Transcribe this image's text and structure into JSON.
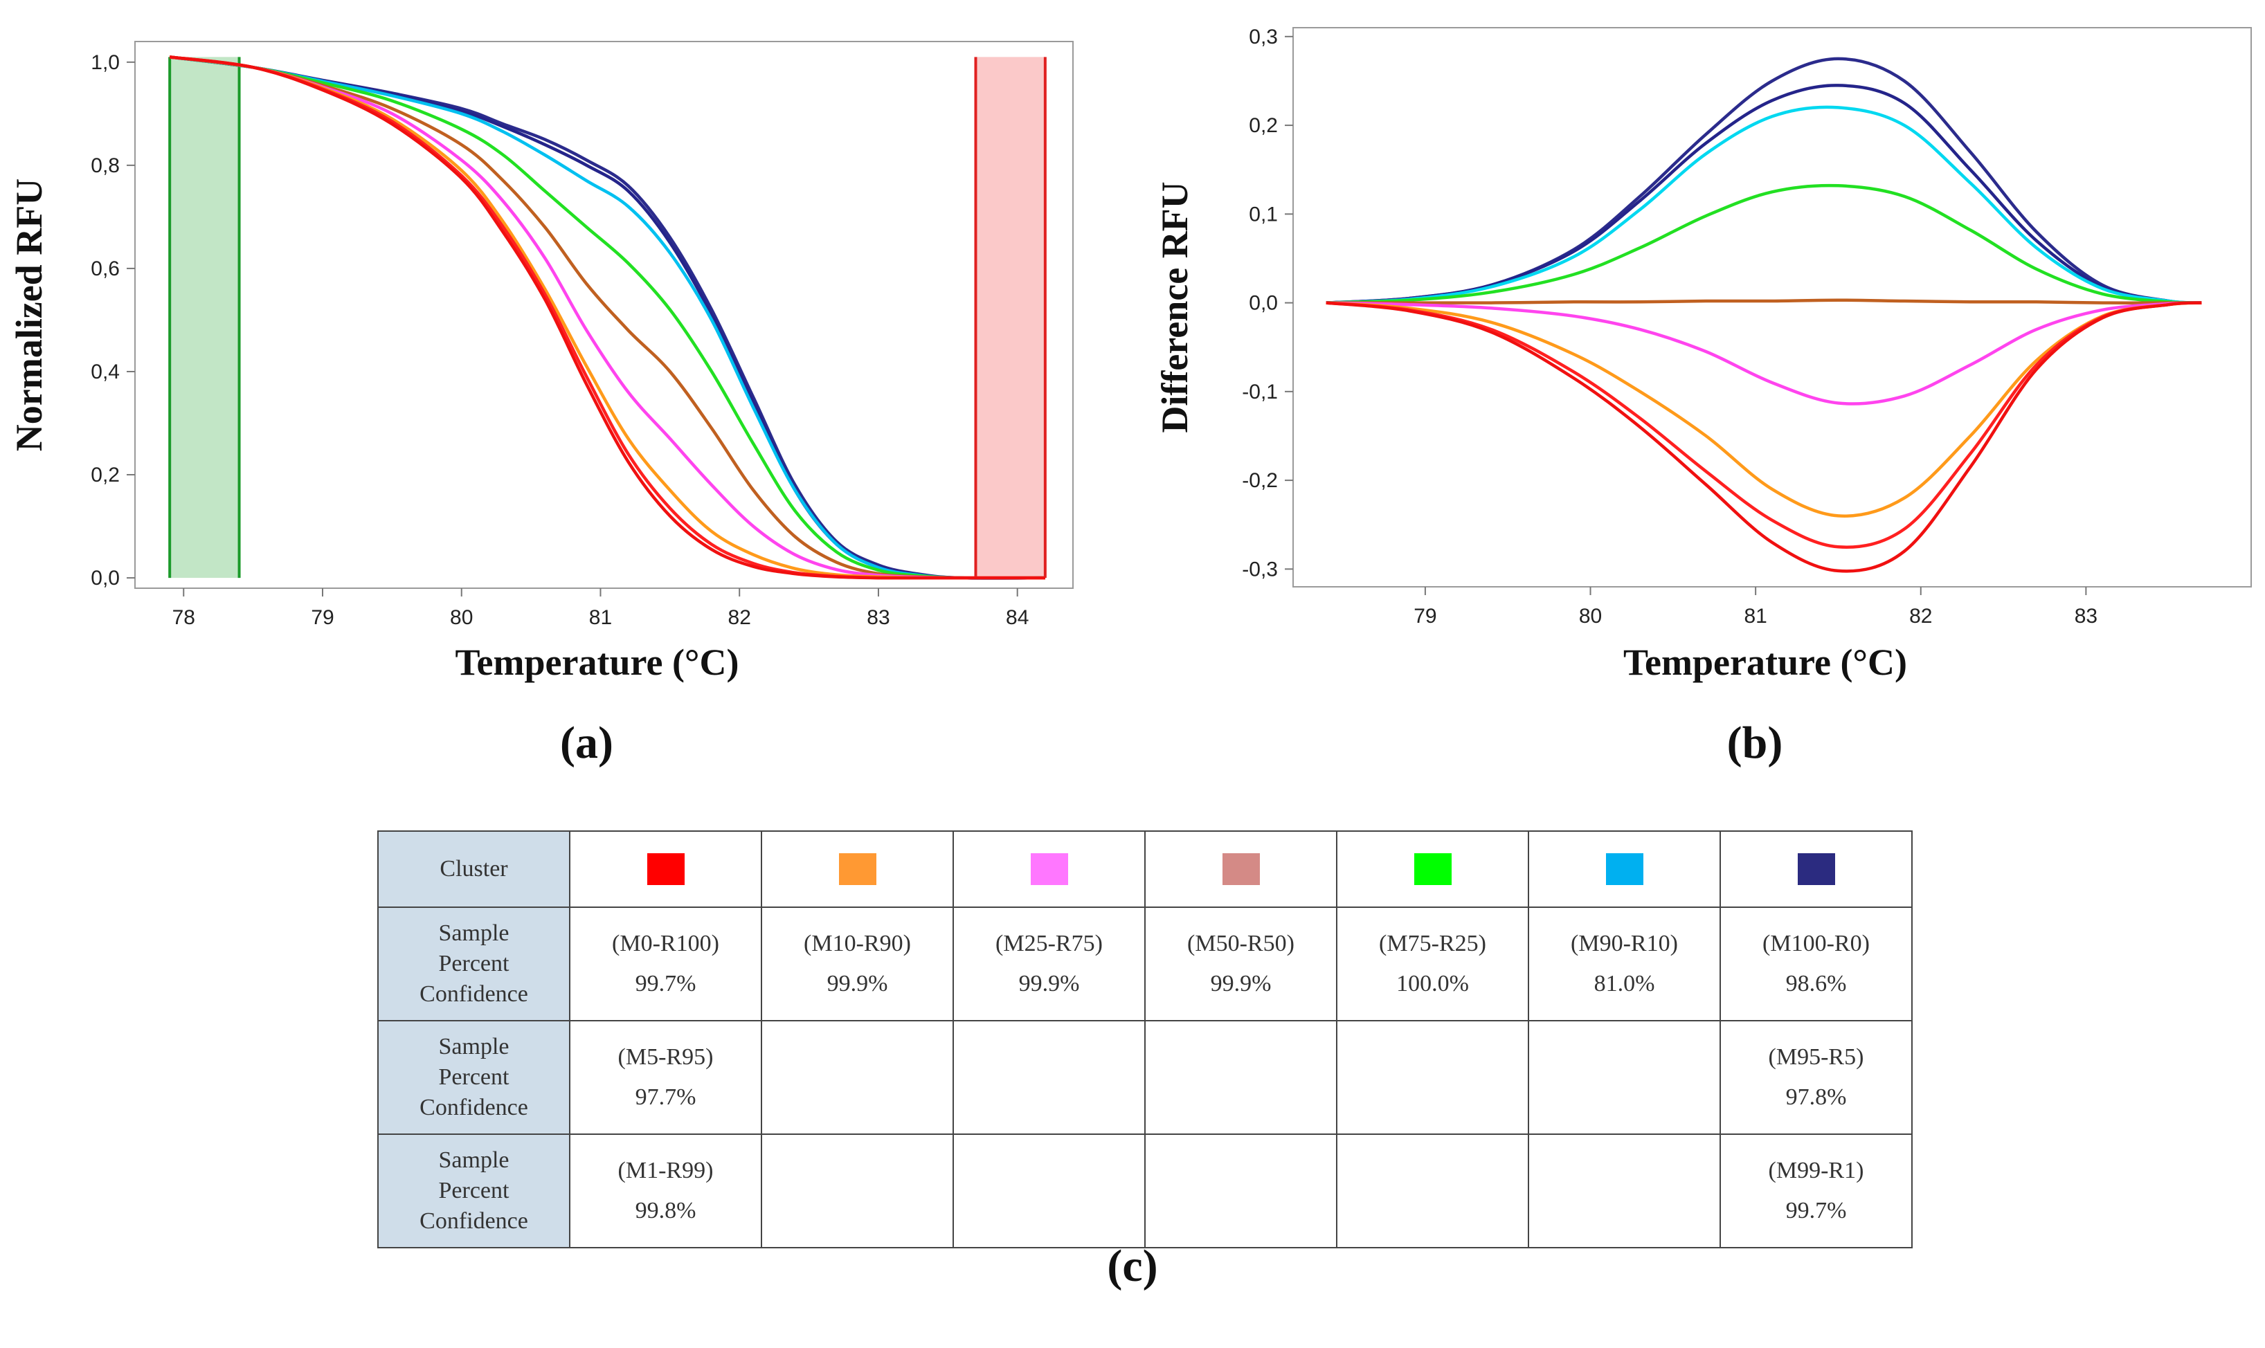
{
  "chart_data": [
    {
      "type": "line",
      "panel": "(a)",
      "ylabel": "Normalized RFU",
      "xlabel": "Temperature (°C)",
      "xlim": [
        77.65,
        84.4
      ],
      "ylim": [
        -0.02,
        1.04
      ],
      "xticks": [
        78,
        79,
        80,
        81,
        82,
        83,
        84
      ],
      "yticks": [
        0.0,
        0.2,
        0.4,
        0.6,
        0.8,
        1.0
      ],
      "ytick_labels": [
        "0,0",
        "0,2",
        "0,4",
        "0,6",
        "0,8",
        "1,0"
      ],
      "regions": [
        {
          "name": "pre-melt",
          "x": [
            77.9,
            78.4
          ],
          "y": [
            0.0,
            1.01
          ],
          "color": "#c2e6c6",
          "edge": "#1b9a2a"
        },
        {
          "name": "post-melt",
          "x": [
            83.7,
            84.2
          ],
          "y": [
            0.0,
            1.01
          ],
          "color": "#fbc9c9",
          "edge": "#e02020"
        }
      ],
      "x": [
        77.9,
        78.5,
        79.0,
        79.5,
        80.0,
        80.3,
        80.6,
        80.9,
        81.2,
        81.5,
        81.8,
        82.1,
        82.4,
        82.7,
        83.0,
        83.3,
        83.6,
        84.2
      ],
      "series": [
        {
          "name": "M100-R0 a",
          "color": "#2b2b8c",
          "values": [
            1.01,
            0.99,
            0.965,
            0.94,
            0.91,
            0.88,
            0.85,
            0.81,
            0.76,
            0.66,
            0.52,
            0.35,
            0.18,
            0.07,
            0.025,
            0.007,
            0.0,
            0.0
          ]
        },
        {
          "name": "M100-R0 b",
          "color": "#24248a",
          "values": [
            1.01,
            0.99,
            0.964,
            0.938,
            0.905,
            0.875,
            0.84,
            0.8,
            0.75,
            0.65,
            0.51,
            0.34,
            0.17,
            0.065,
            0.022,
            0.006,
            0.0,
            0.0
          ]
        },
        {
          "name": "M90-R10",
          "color": "#00c0f0",
          "values": [
            1.01,
            0.99,
            0.963,
            0.935,
            0.9,
            0.865,
            0.82,
            0.77,
            0.72,
            0.63,
            0.5,
            0.33,
            0.17,
            0.065,
            0.02,
            0.005,
            0.0,
            0.0
          ]
        },
        {
          "name": "M75-R25",
          "color": "#22e022",
          "values": [
            1.01,
            0.99,
            0.96,
            0.925,
            0.87,
            0.82,
            0.75,
            0.68,
            0.61,
            0.52,
            0.4,
            0.26,
            0.13,
            0.05,
            0.015,
            0.004,
            0.0,
            0.0
          ]
        },
        {
          "name": "M50-R50",
          "color": "#c06020",
          "values": [
            1.01,
            0.99,
            0.955,
            0.91,
            0.84,
            0.77,
            0.68,
            0.57,
            0.48,
            0.4,
            0.29,
            0.17,
            0.08,
            0.03,
            0.008,
            0.002,
            0.0,
            0.0
          ]
        },
        {
          "name": "M25-R75",
          "color": "#ff44ee",
          "values": [
            1.01,
            0.99,
            0.952,
            0.9,
            0.81,
            0.73,
            0.62,
            0.48,
            0.36,
            0.27,
            0.18,
            0.1,
            0.045,
            0.016,
            0.005,
            0.001,
            0.0,
            0.0
          ]
        },
        {
          "name": "M10-R90",
          "color": "#ff9a1a",
          "values": [
            1.01,
            0.99,
            0.95,
            0.89,
            0.79,
            0.69,
            0.56,
            0.41,
            0.27,
            0.17,
            0.09,
            0.045,
            0.018,
            0.006,
            0.002,
            0.0,
            0.0,
            0.0
          ]
        },
        {
          "name": "M0-R100 a",
          "color": "#ff2020",
          "values": [
            1.01,
            0.99,
            0.948,
            0.885,
            0.78,
            0.68,
            0.55,
            0.39,
            0.24,
            0.135,
            0.065,
            0.028,
            0.01,
            0.003,
            0.0,
            0.0,
            0.0,
            0.0
          ]
        },
        {
          "name": "M0-R100 b",
          "color": "#f01010",
          "values": [
            1.01,
            0.99,
            0.946,
            0.88,
            0.775,
            0.67,
            0.54,
            0.375,
            0.225,
            0.12,
            0.055,
            0.022,
            0.008,
            0.002,
            0.0,
            0.0,
            0.0,
            0.0
          ]
        }
      ],
      "panel_label": "(a)"
    },
    {
      "type": "line",
      "panel": "(b)",
      "ylabel": "Difference RFU",
      "xlabel": "Temperature (°C)",
      "xlim": [
        78.2,
        84.0
      ],
      "ylim": [
        -0.32,
        0.31
      ],
      "xticks": [
        79,
        80,
        81,
        82,
        83
      ],
      "yticks": [
        -0.3,
        -0.2,
        -0.1,
        0.0,
        0.1,
        0.2,
        0.3
      ],
      "ytick_labels": [
        "-0,3",
        "-0,2",
        "-0,1",
        "0,0",
        "0,1",
        "0,2",
        "0,3"
      ],
      "x": [
        78.4,
        78.9,
        79.4,
        79.9,
        80.3,
        80.7,
        81.1,
        81.5,
        81.9,
        82.3,
        82.7,
        83.1,
        83.5,
        83.7
      ],
      "series": [
        {
          "name": "M100-R0 a",
          "color": "#2b2b8c",
          "values": [
            0.0,
            0.005,
            0.02,
            0.06,
            0.12,
            0.19,
            0.25,
            0.275,
            0.25,
            0.17,
            0.08,
            0.02,
            0.002,
            0.0
          ]
        },
        {
          "name": "M100-R0 b",
          "color": "#24248a",
          "values": [
            0.0,
            0.005,
            0.02,
            0.058,
            0.115,
            0.18,
            0.228,
            0.245,
            0.225,
            0.15,
            0.07,
            0.018,
            0.002,
            0.0
          ]
        },
        {
          "name": "M90-R10",
          "color": "#00d8f0",
          "values": [
            0.0,
            0.004,
            0.018,
            0.052,
            0.105,
            0.168,
            0.21,
            0.22,
            0.2,
            0.135,
            0.062,
            0.016,
            0.002,
            0.0
          ]
        },
        {
          "name": "M75-R25",
          "color": "#22e022",
          "values": [
            0.0,
            0.003,
            0.012,
            0.032,
            0.062,
            0.098,
            0.125,
            0.132,
            0.12,
            0.082,
            0.038,
            0.01,
            0.001,
            0.0
          ]
        },
        {
          "name": "M50-R50",
          "color": "#c06020",
          "values": [
            0.0,
            0.0,
            0.0,
            0.001,
            0.001,
            0.002,
            0.002,
            0.003,
            0.002,
            0.001,
            0.001,
            0.0,
            0.0,
            0.0
          ]
        },
        {
          "name": "M25-R75",
          "color": "#ff44ee",
          "values": [
            0.0,
            -0.002,
            -0.006,
            -0.015,
            -0.03,
            -0.055,
            -0.09,
            -0.113,
            -0.105,
            -0.07,
            -0.03,
            -0.008,
            -0.001,
            0.0
          ]
        },
        {
          "name": "M10-R90",
          "color": "#ff9a1a",
          "values": [
            0.0,
            -0.006,
            -0.022,
            -0.058,
            -0.1,
            -0.15,
            -0.21,
            -0.24,
            -0.22,
            -0.15,
            -0.065,
            -0.015,
            -0.002,
            0.0
          ]
        },
        {
          "name": "M0-R100 a",
          "color": "#ff2020",
          "values": [
            0.0,
            -0.008,
            -0.03,
            -0.078,
            -0.13,
            -0.19,
            -0.245,
            -0.275,
            -0.255,
            -0.17,
            -0.07,
            -0.016,
            -0.002,
            0.0
          ]
        },
        {
          "name": "M0-R100 b",
          "color": "#f01010",
          "values": [
            0.0,
            -0.009,
            -0.033,
            -0.085,
            -0.14,
            -0.205,
            -0.27,
            -0.302,
            -0.28,
            -0.185,
            -0.075,
            -0.017,
            -0.002,
            0.0
          ]
        }
      ],
      "panel_label": "(b)"
    }
  ],
  "table": {
    "header_label": "Cluster",
    "swatches": [
      "#ff0000",
      "#ff9933",
      "#ff77ff",
      "#d48a86",
      "#00ff00",
      "#00b0f0",
      "#2b2b80"
    ],
    "sample_label": "Sample",
    "percent_label_1": "Percent",
    "percent_label_2": "Confidence",
    "rows": [
      {
        "samples": [
          "(M0-R100)",
          "(M10-R90)",
          "(M25-R75)",
          "(M50-R50)",
          "(M75-R25)",
          "(M90-R10)",
          "(M100-R0)"
        ],
        "confidences": [
          "99.7%",
          "99.9%",
          "99.9%",
          "99.9%",
          "100.0%",
          "81.0%",
          "98.6%"
        ]
      },
      {
        "samples": [
          "(M5-R95)",
          "",
          "",
          "",
          "",
          "",
          "(M95-R5)"
        ],
        "confidences": [
          "97.7%",
          "",
          "",
          "",
          "",
          "",
          "97.8%"
        ]
      },
      {
        "samples": [
          "(M1-R99)",
          "",
          "",
          "",
          "",
          "",
          "(M99-R1)"
        ],
        "confidences": [
          "99.8%",
          "",
          "",
          "",
          "",
          "",
          "99.7%"
        ]
      }
    ],
    "panel_label": "(c)"
  }
}
